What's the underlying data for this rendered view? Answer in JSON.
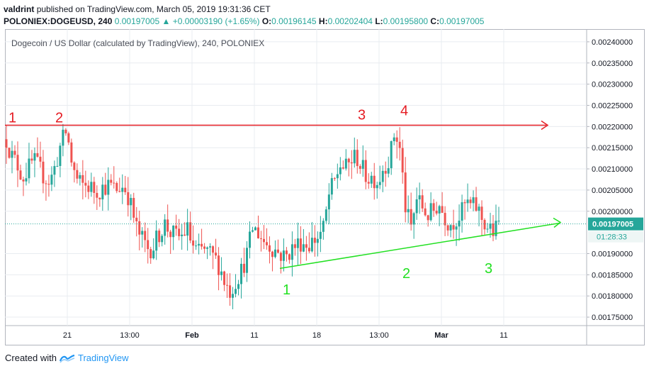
{
  "header": {
    "author": "valdrint",
    "published_text": "published on TradingView.com, March 05, 2019 19:31:36 CET",
    "symbol": "POLONIEX:DOGEUSD, 240",
    "last": "0.00197005",
    "change": "+0.00003190 (+1.65%)",
    "o_label": "O:",
    "o": "0.00196145",
    "h_label": "H:",
    "h": "0.00202404",
    "l_label": "L:",
    "l": "0.00195800",
    "c_label": "C:",
    "c": "0.00197005"
  },
  "footer": {
    "created_with": "Created with",
    "brand": "TradingView"
  },
  "chart_data": {
    "type": "candlestick",
    "title": "Dogecoin / US Dollar (calculated by TradingView), 240, POLONIEX",
    "x_tick_labels": [
      "21",
      "13:00",
      "Feb",
      "11",
      "18",
      "13:00",
      "Mar",
      "11"
    ],
    "y_tick_labels": [
      "0.00240000",
      "0.00235000",
      "0.00230000",
      "0.00225000",
      "0.00220000",
      "0.00215000",
      "0.00210000",
      "0.00205000",
      "0.00200000",
      "0.00190000",
      "0.00185000",
      "0.00180000",
      "0.00175000"
    ],
    "ylim": [
      0.00173,
      0.00243
    ],
    "price_tag": "0.00197005",
    "countdown_tag": "01:28:33",
    "price_line": 0.00197005,
    "colors": {
      "up": "#26a69a",
      "down": "#ef5350",
      "resistance": "#e51c23",
      "support": "#22e022",
      "grid": "#e8ecf0",
      "price_line": "#26a69a"
    },
    "approx_close_path": [
      0.00217,
      0.00213,
      0.00211,
      0.00208,
      0.0021,
      0.00212,
      0.0021,
      0.00208,
      0.00207,
      0.00211,
      0.00216,
      0.00219,
      0.00211,
      0.00207,
      0.00206,
      0.00206,
      0.00205,
      0.00205,
      0.00206,
      0.00206,
      0.00205,
      0.00206,
      0.00205,
      0.002,
      0.00195,
      0.00193,
      0.00191,
      0.00192,
      0.00195,
      0.00197,
      0.00195,
      0.00194,
      0.00194,
      0.00196,
      0.00192,
      0.0019,
      0.00191,
      0.0019,
      0.00189,
      0.00187,
      0.00183,
      0.00181,
      0.00184,
      0.00186,
      0.0019,
      0.00196,
      0.00195,
      0.00193,
      0.00192,
      0.00191,
      0.0019,
      0.00189,
      0.00191,
      0.00192,
      0.00193,
      0.00192,
      0.00193,
      0.00194,
      0.00196,
      0.00204,
      0.00207,
      0.00211,
      0.0021,
      0.00212,
      0.00213,
      0.0021,
      0.00208,
      0.00208,
      0.00207,
      0.00211,
      0.00212,
      0.00219,
      0.00214,
      0.002,
      0.00196,
      0.00203,
      0.00201,
      0.00199,
      0.002,
      0.00202,
      0.00199,
      0.00197,
      0.00198,
      0.00199,
      0.00202,
      0.00201,
      0.00201,
      0.00198,
      0.00196,
      0.00195,
      0.00197
    ],
    "resistance_line": {
      "from": [
        "start",
        0.002203
      ],
      "to": [
        "after-Mar",
        0.002203
      ],
      "labels": [
        "1",
        "2",
        "3",
        "4"
      ]
    },
    "support_line": {
      "from": [
        "11",
        0.001865
      ],
      "to": [
        "after-Mar",
        0.001972
      ],
      "labels": [
        "1",
        "2",
        "3"
      ]
    }
  }
}
